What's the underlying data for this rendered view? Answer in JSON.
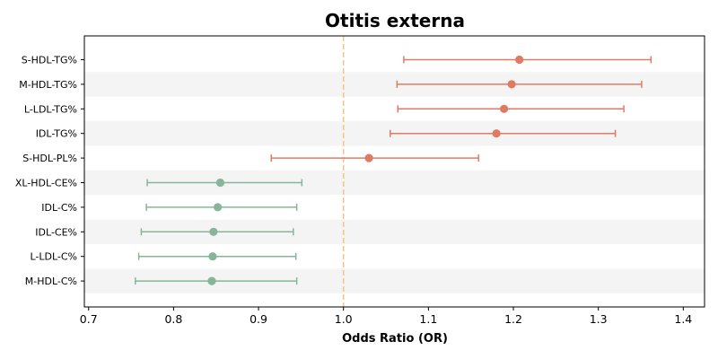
{
  "chart_data": {
    "type": "forest",
    "title": "Otitis externa",
    "xlabel": "Odds Ratio (OR)",
    "xlim": [
      0.695,
      1.425
    ],
    "xticks": [
      "0.7",
      "0.8",
      "0.9",
      "1.0",
      "1.1",
      "1.2",
      "1.3",
      "1.4"
    ],
    "reference_line": 1.0,
    "grid": false,
    "row_banding": true,
    "colors": {
      "increased_risk": "#e07b63",
      "decreased_risk": "#86b59a",
      "reference_line": "#f5c58c",
      "band": "#f4f4f4"
    },
    "rows": [
      {
        "label": "S-HDL-TG%",
        "or": 1.207,
        "ci_low": 1.071,
        "ci_high": 1.362,
        "group": "increased_risk"
      },
      {
        "label": "M-HDL-TG%",
        "or": 1.198,
        "ci_low": 1.063,
        "ci_high": 1.351,
        "group": "increased_risk"
      },
      {
        "label": "L-LDL-TG%",
        "or": 1.189,
        "ci_low": 1.064,
        "ci_high": 1.33,
        "group": "increased_risk"
      },
      {
        "label": "IDL-TG%",
        "or": 1.18,
        "ci_low": 1.055,
        "ci_high": 1.32,
        "group": "increased_risk"
      },
      {
        "label": "S-HDL-PL%",
        "or": 1.03,
        "ci_low": 0.915,
        "ci_high": 1.159,
        "group": "increased_risk"
      },
      {
        "label": "XL-HDL-CE%",
        "or": 0.855,
        "ci_low": 0.769,
        "ci_high": 0.951,
        "group": "decreased_risk"
      },
      {
        "label": "IDL-C%",
        "or": 0.852,
        "ci_low": 0.768,
        "ci_high": 0.945,
        "group": "decreased_risk"
      },
      {
        "label": "IDL-CE%",
        "or": 0.847,
        "ci_low": 0.762,
        "ci_high": 0.941,
        "group": "decreased_risk"
      },
      {
        "label": "L-LDL-C%",
        "or": 0.846,
        "ci_low": 0.759,
        "ci_high": 0.944,
        "group": "decreased_risk"
      },
      {
        "label": "M-HDL-C%",
        "or": 0.845,
        "ci_low": 0.755,
        "ci_high": 0.945,
        "group": "decreased_risk"
      }
    ]
  }
}
